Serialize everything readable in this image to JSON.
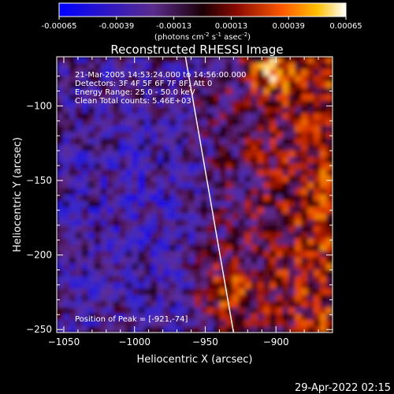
{
  "chart_data": {
    "type": "heatmap",
    "title": "Reconstructed RHESSI Image",
    "xlabel": "Heliocentric X (arcsec)",
    "ylabel": "Heliocentric Y (arcsec)",
    "xlim": [
      -1055,
      -860
    ],
    "ylim": [
      -252,
      -67
    ],
    "xticks": [
      -1050,
      -1000,
      -950,
      -900
    ],
    "yticks": [
      -100,
      -150,
      -200,
      -250
    ],
    "colorbar": {
      "ticks": [
        "-0.00065",
        "-0.00039",
        "-0.00013",
        "0.00013",
        "0.00039",
        "0.00065"
      ],
      "range": [
        -0.00065,
        0.00065
      ],
      "units_prefix": "(photons cm",
      "units_exp1": "-2",
      "units_mid": " s",
      "units_exp2": "-1",
      "units_mid2": " asec",
      "units_exp3": "-2",
      "units_suffix": ")"
    },
    "annotations": [
      "21-Mar-2005 14:53:24.000 to 14:56:00.000",
      "Detectors: 3F 4F 5F 6F 7F 8F, Att 0",
      "Energy Range: 25.0 - 50.0 keV",
      "Clean     Total counts: 5.46E+03"
    ],
    "peak_label": "Position of Peak = [-921,-74]",
    "limb_line": [
      [
        -964,
        -67
      ],
      [
        -930,
        -252
      ]
    ],
    "grid": false
  },
  "footer": {
    "timestamp": "29-Apr-2022 02:15"
  }
}
